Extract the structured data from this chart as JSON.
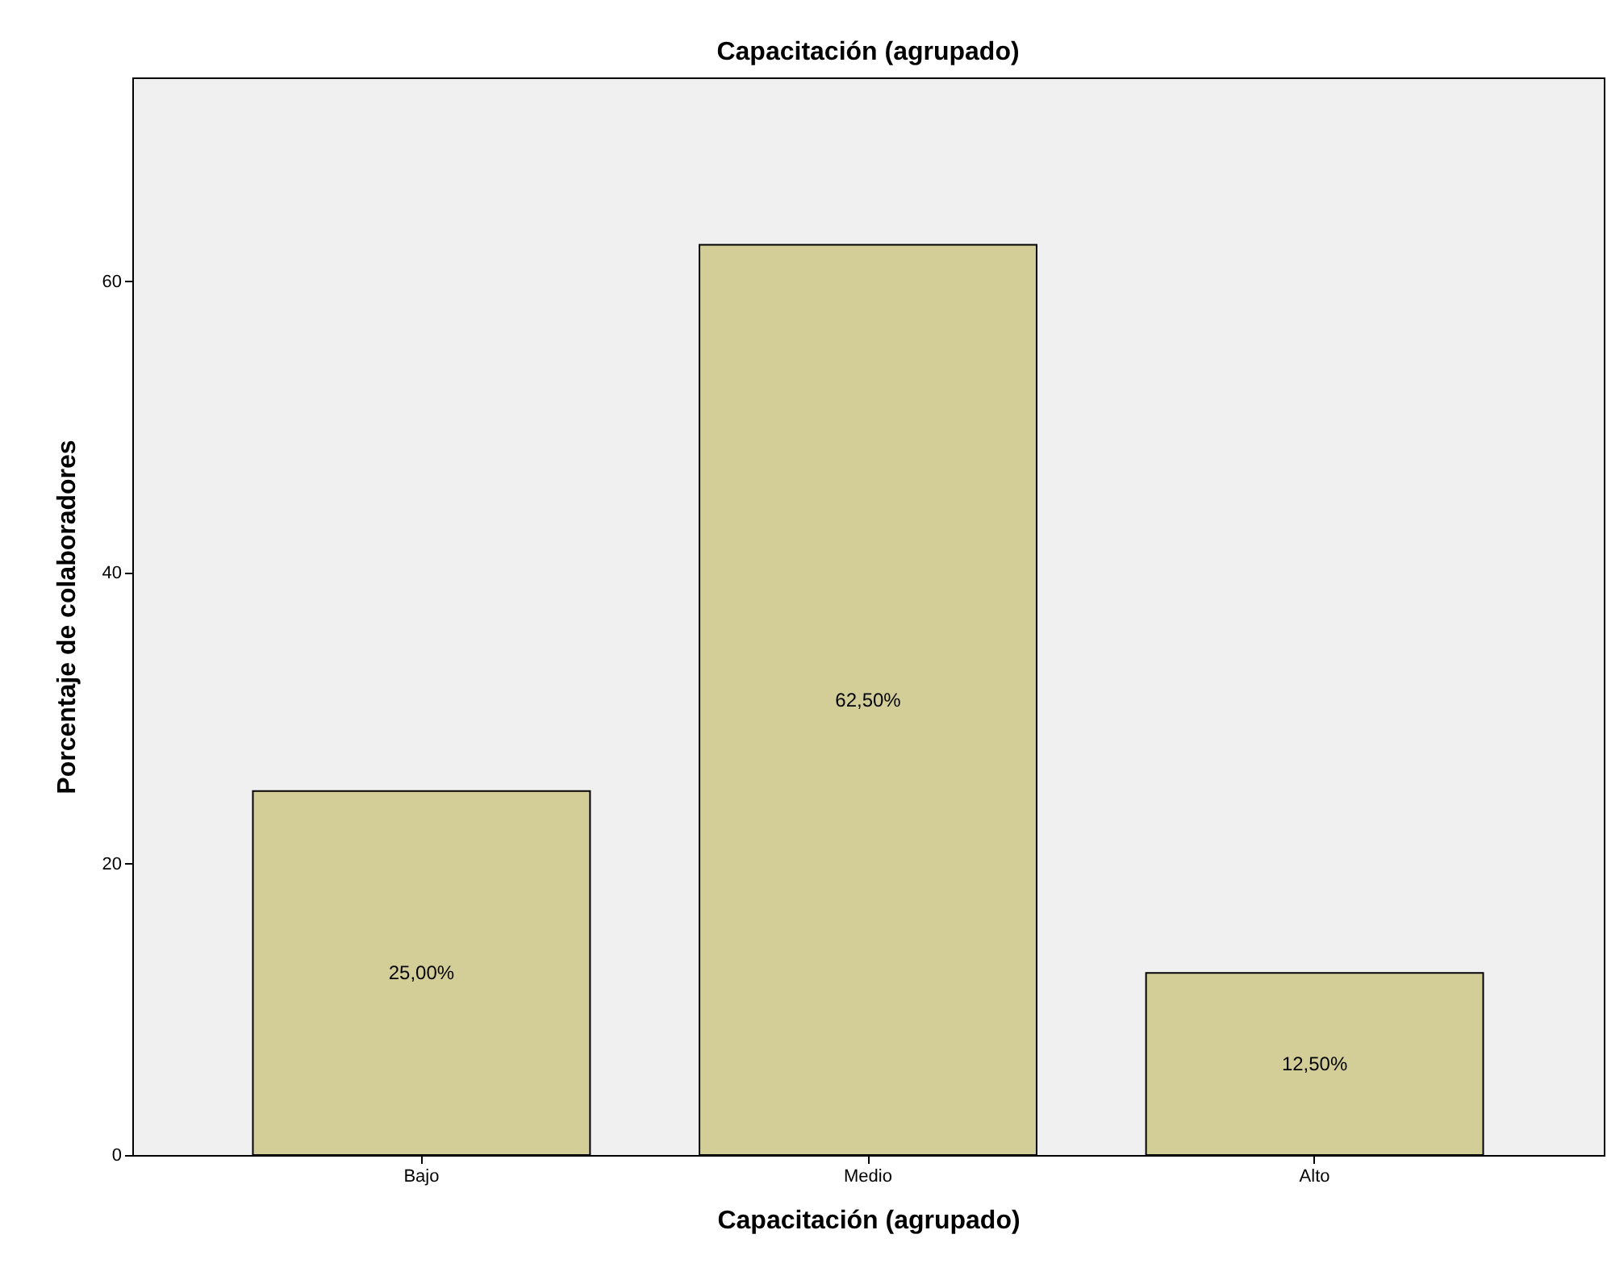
{
  "chart_data": {
    "type": "bar",
    "title": "Capacitación (agrupado)",
    "xlabel": "Capacitación (agrupado)",
    "ylabel": "Porcentaje de colaboradores",
    "categories": [
      "Bajo",
      "Medio",
      "Alto"
    ],
    "values": [
      25,
      62.5,
      12.5
    ],
    "value_labels": [
      "25,00%",
      "62,50%",
      "12,50%"
    ],
    "color": "#d3ce97",
    "ylim": [
      0,
      74
    ],
    "yticks": [
      0,
      20,
      40,
      60
    ],
    "grid": false
  }
}
